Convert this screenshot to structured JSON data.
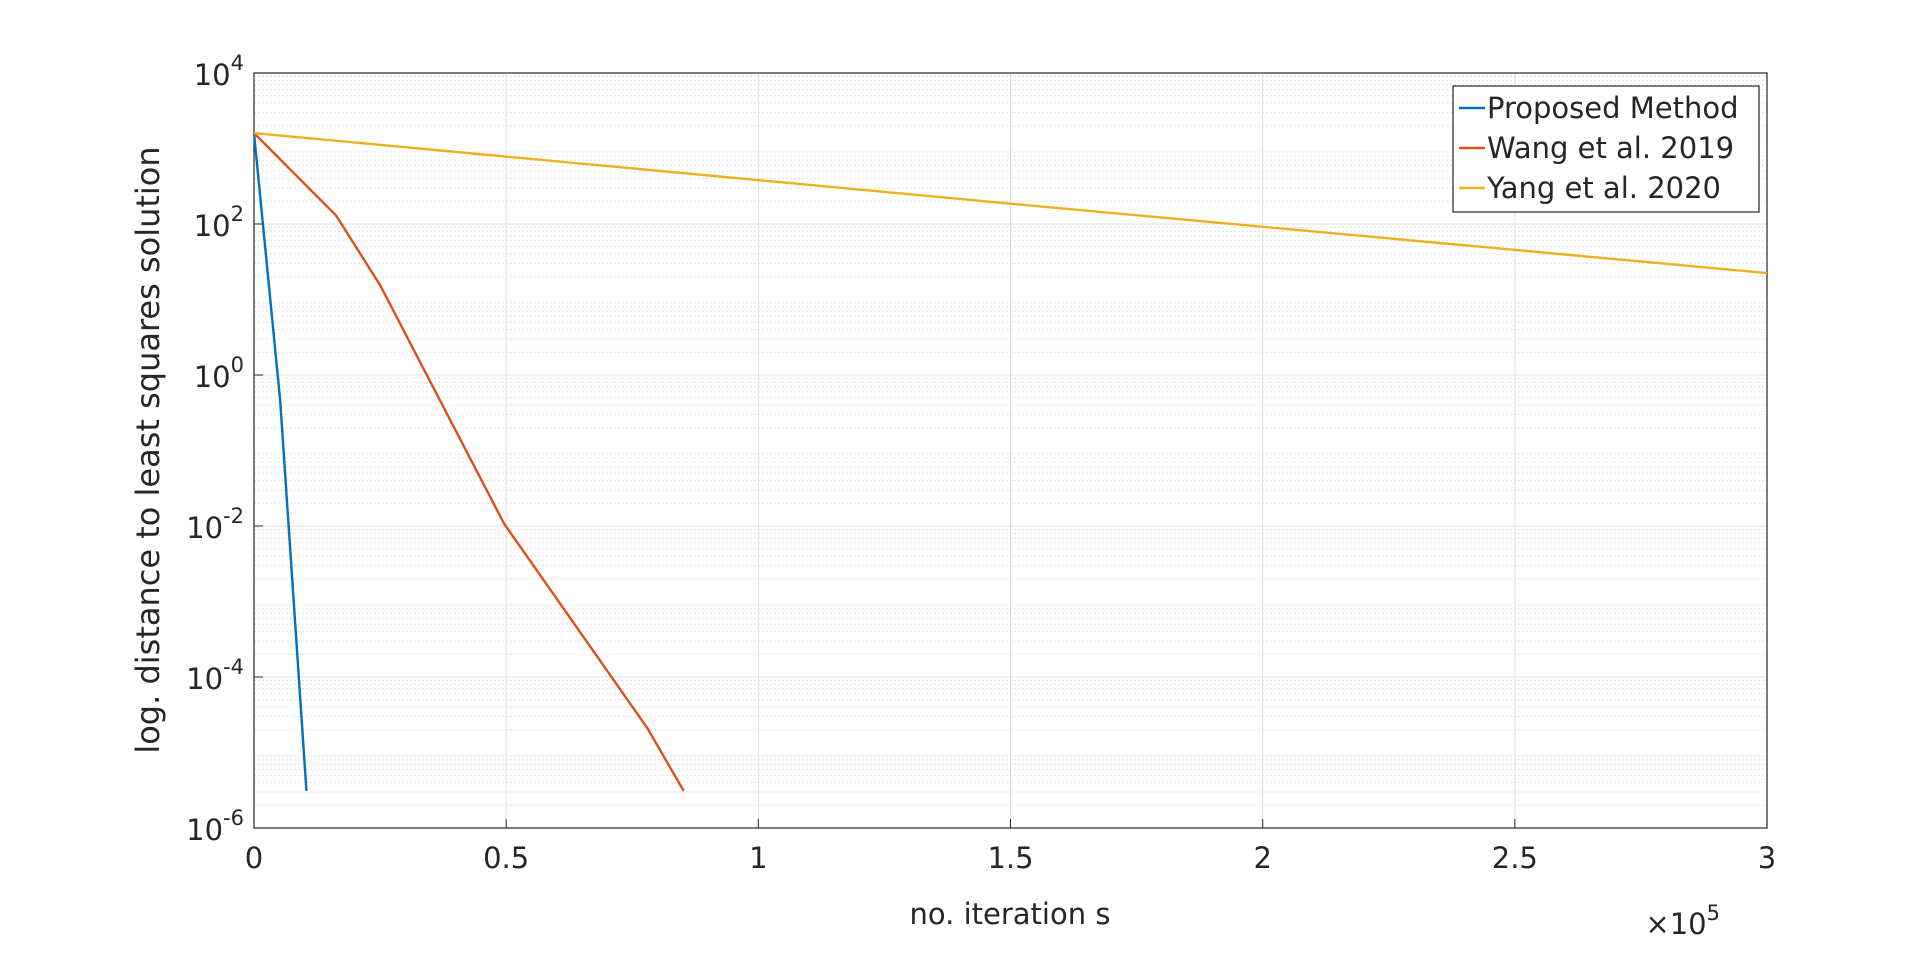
{
  "chart_data": {
    "type": "line",
    "xlabel": "no. iteration s",
    "ylabel": "log. distance to least squares solution",
    "x_multiplier": {
      "base": "×10",
      "exponent": "5"
    },
    "xlim": [
      0,
      300000
    ],
    "xticks": [
      0,
      {
        "value": 50000,
        "label": "0.5"
      },
      {
        "value": 100000,
        "label": "1"
      },
      {
        "value": 150000,
        "label": "1.5"
      },
      {
        "value": 200000,
        "label": "2"
      },
      {
        "value": 250000,
        "label": "2.5"
      },
      {
        "value": 300000,
        "label": "3"
      }
    ],
    "ylim": [
      1e-06,
      10000
    ],
    "yscale": "log",
    "yticks": [
      {
        "value": 1e-06,
        "label": "10",
        "exponent": "-6"
      },
      {
        "value": 0.0001,
        "label": "10",
        "exponent": "-4"
      },
      {
        "value": 0.01,
        "label": "10",
        "exponent": "-2"
      },
      {
        "value": 1,
        "label": "10",
        "exponent": "0"
      },
      {
        "value": 100,
        "label": "10",
        "exponent": "2"
      },
      {
        "value": 10000,
        "label": "10",
        "exponent": "4"
      }
    ],
    "grid": true,
    "legend": "upper right",
    "series": [
      {
        "name": "Proposed Method",
        "color": "#0072bd",
        "x": [
          0,
          5200,
          10400
        ],
        "values": [
          1600,
          0.45,
          3.1e-06
        ]
      },
      {
        "name": "Wang et al. 2019",
        "color": "#d95319",
        "x": [
          0,
          16300,
          25000,
          49600,
          78000,
          85200
        ],
        "values": [
          1600,
          129,
          15.5,
          0.0107,
          2.1e-05,
          3.1e-06
        ]
      },
      {
        "name": "Yang et al. 2020",
        "color": "#edb120",
        "x": [
          0,
          150000,
          300000
        ],
        "values": [
          1600,
          186,
          22.4
        ]
      }
    ]
  }
}
